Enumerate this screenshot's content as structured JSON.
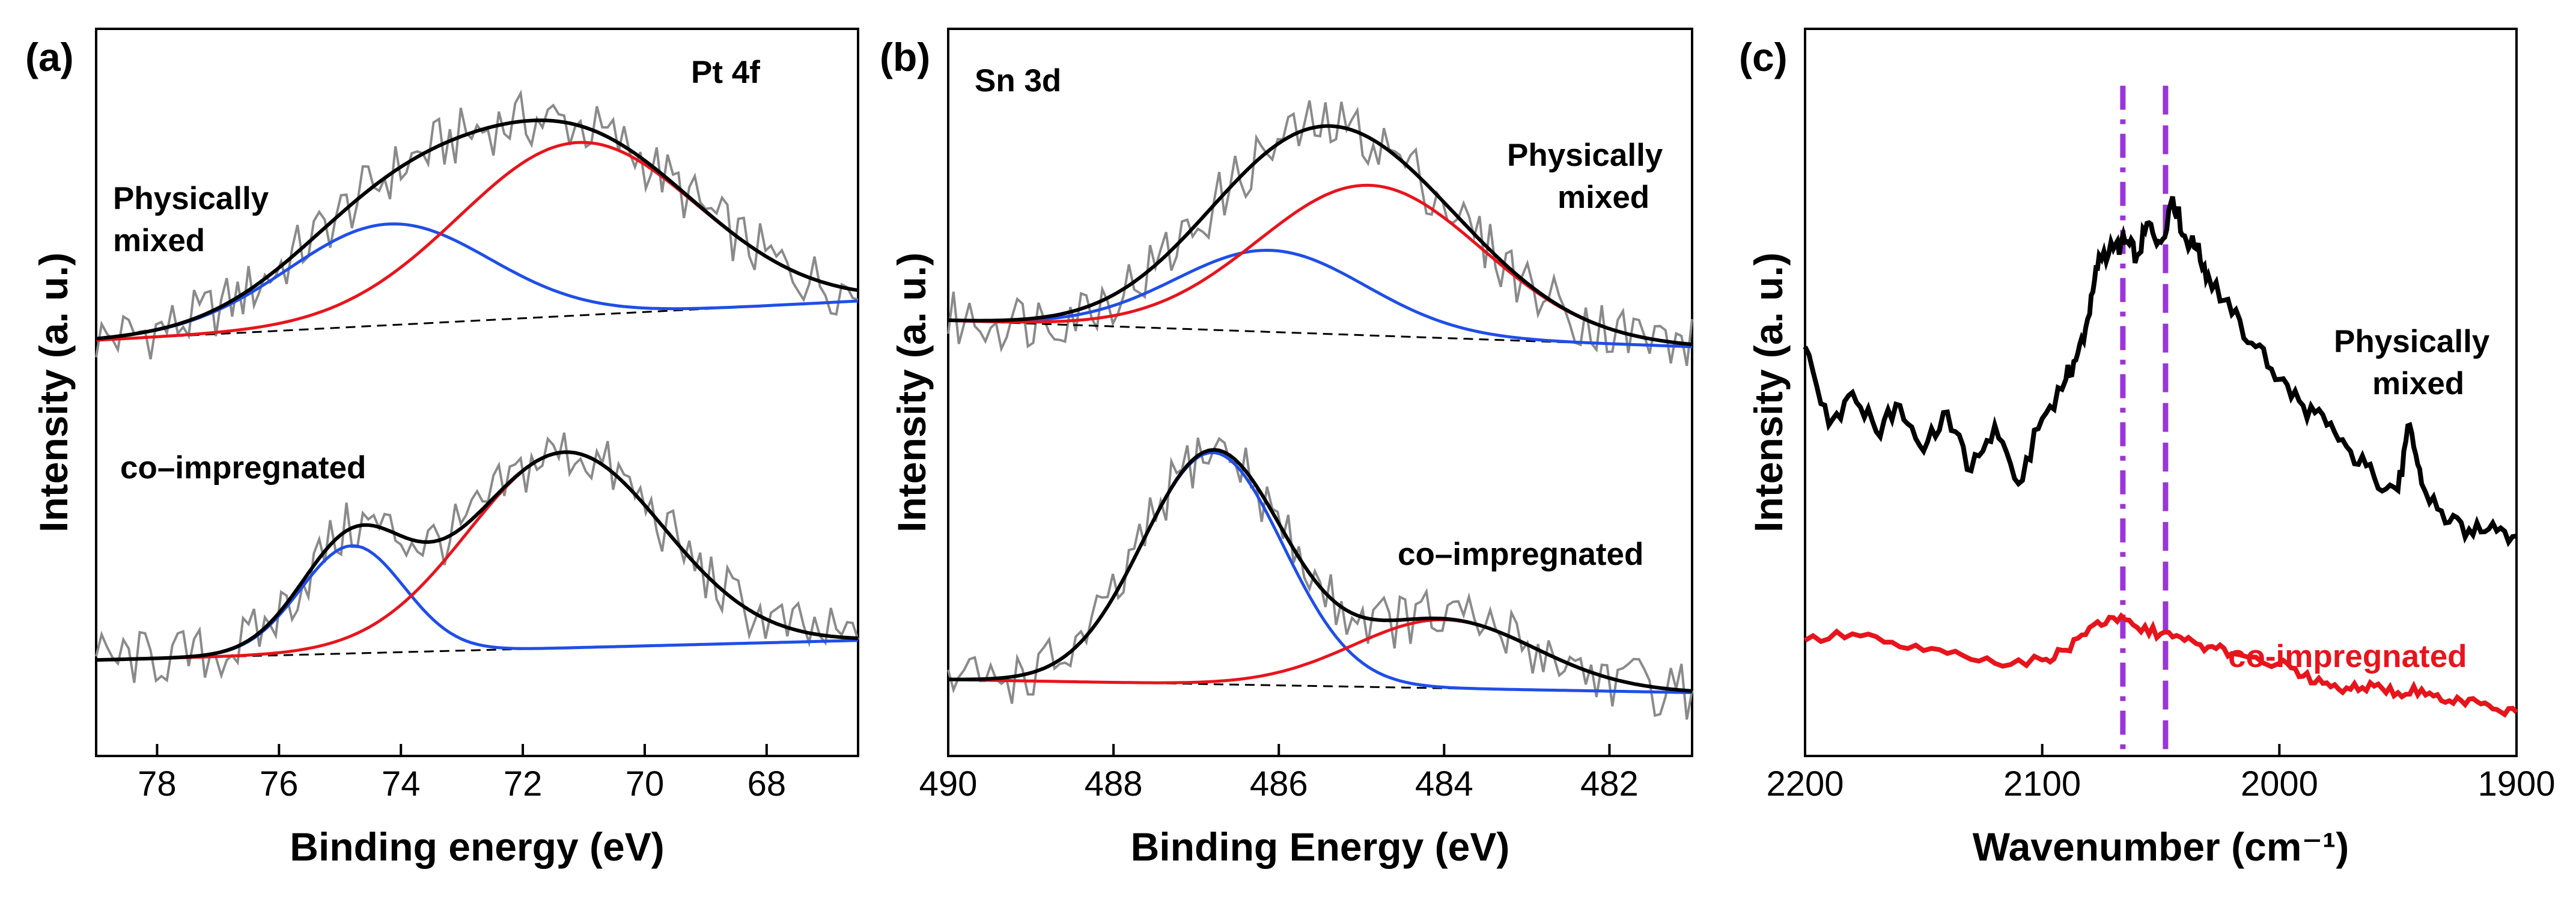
{
  "colors": {
    "raw": "#8a8a8a",
    "envelope": "#000000",
    "peak_red": "#e8141c",
    "peak_blue": "#1f4ee8",
    "baseline": "#000000",
    "ir_black": "#000000",
    "ir_red": "#e8141c",
    "marker": "#9a35d8"
  },
  "chart_data": [
    {
      "type": "line",
      "panel_label": "(a)",
      "title": "Pt 4f",
      "xlabel": "Binding energy (eV)",
      "ylabel": "Intensity (a. u.)",
      "xlim": [
        79,
        66.5
      ],
      "ylim": [
        0,
        100
      ],
      "x_reversed": true,
      "xticks": [
        78,
        76,
        74,
        72,
        70,
        68
      ],
      "xtick_labels": [
        "78",
        "76",
        "74",
        "72",
        "70",
        "68"
      ],
      "annotations": [
        {
          "text": "Pt 4f"
        },
        {
          "text": "Physically",
          "group": "top"
        },
        {
          "text": "mixed",
          "group": "top"
        },
        {
          "text": "co–impregnated",
          "group": "bottom"
        }
      ],
      "series": [
        {
          "name": "Physically mixed – baseline",
          "role": "baseline",
          "offset": 58,
          "base_start": 0,
          "base_end": 6
        },
        {
          "name": "Physically mixed – peak 1",
          "role": "peak",
          "color": "blue",
          "offset": 58,
          "center": 74.2,
          "sigma": 1.65,
          "amplitude": 15.5
        },
        {
          "name": "Physically mixed – peak 2",
          "role": "peak",
          "color": "red",
          "offset": 58,
          "center": 71.1,
          "sigma": 1.95,
          "amplitude": 26.5
        },
        {
          "name": "co–impregnated – baseline",
          "role": "baseline",
          "offset": 9,
          "base_start": 0,
          "base_end": 3
        },
        {
          "name": "co–impregnated – peak 1",
          "role": "peak",
          "color": "blue",
          "offset": 9,
          "center": 74.8,
          "sigma": 0.85,
          "amplitude": 16.5
        },
        {
          "name": "co–impregnated – peak 2",
          "role": "peak",
          "color": "red",
          "offset": 9,
          "center": 71.3,
          "sigma": 1.6,
          "amplitude": 30
        }
      ]
    },
    {
      "type": "line",
      "panel_label": "(b)",
      "title": "Sn 3d",
      "xlabel": "Binding Energy (eV)",
      "ylabel": "Intensity (a. u.)",
      "xlim": [
        490,
        481
      ],
      "ylim": [
        0,
        100
      ],
      "x_reversed": true,
      "xticks": [
        490,
        488,
        486,
        484,
        482
      ],
      "xtick_labels": [
        "490",
        "488",
        "486",
        "484",
        "482"
      ],
      "annotations": [
        {
          "text": "Sn 3d"
        },
        {
          "text": "Physically",
          "group": "top"
        },
        {
          "text": "mixed",
          "group": "top"
        },
        {
          "text": "co–impregnated",
          "group": "bottom"
        }
      ],
      "series": [
        {
          "name": "Physically mixed – baseline",
          "role": "baseline",
          "offset": 59,
          "base_start": 2,
          "base_end": -2
        },
        {
          "name": "Physically mixed – peak 1",
          "role": "peak",
          "color": "blue",
          "offset": 59,
          "center": 486.1,
          "sigma": 1.15,
          "amplitude": 12.5
        },
        {
          "name": "Physically mixed – peak 2",
          "role": "peak",
          "color": "red",
          "offset": 59,
          "center": 484.9,
          "sigma": 1.35,
          "amplitude": 23
        },
        {
          "name": "co–impregnated – baseline",
          "role": "baseline",
          "offset": 6,
          "base_start": 0,
          "base_end": -2
        },
        {
          "name": "co–impregnated – peak 1",
          "role": "peak",
          "color": "blue",
          "offset": 6,
          "center": 486.8,
          "sigma": 0.85,
          "amplitude": 35.5
        },
        {
          "name": "co–impregnated – peak 2",
          "role": "peak",
          "color": "red",
          "offset": 6,
          "center": 484,
          "sigma": 1.1,
          "amplitude": 10.5
        }
      ]
    },
    {
      "type": "line",
      "panel_label": "(c)",
      "title": "",
      "xlabel": "Wavenumber (cm⁻¹)",
      "ylabel": "Intensity (a. u.)",
      "xlim": [
        2200,
        1900
      ],
      "ylim": [
        0,
        100
      ],
      "x_reversed": true,
      "xticks": [
        2200,
        2100,
        2000,
        1900
      ],
      "xtick_labels": [
        "2200",
        "2100",
        "2000",
        "1900"
      ],
      "annotations": [
        {
          "text": "Physically",
          "group": "top"
        },
        {
          "text": "mixed",
          "group": "top"
        },
        {
          "text": "co-impregnated",
          "group": "bottom",
          "color": "red"
        }
      ],
      "markers": [
        {
          "x": 2066,
          "style": "dash-dot"
        },
        {
          "x": 2048,
          "style": "dashed"
        }
      ],
      "series": [
        {
          "name": "Physically mixed",
          "color": "black",
          "x": [
            2200,
            2190,
            2180,
            2170,
            2160,
            2150,
            2140,
            2130,
            2120,
            2110,
            2100,
            2090,
            2085,
            2080,
            2076,
            2070,
            2065,
            2060,
            2055,
            2050,
            2045,
            2040,
            2035,
            2030,
            2020,
            2010,
            2000,
            1990,
            1980,
            1970,
            1960,
            1950,
            1945,
            1940,
            1930,
            1920,
            1910,
            1900
          ],
          "y": [
            57,
            45,
            50,
            44,
            48,
            41,
            47,
            38,
            45,
            36,
            46,
            52,
            56,
            62,
            71,
            72,
            73,
            71,
            76,
            73,
            80,
            74,
            72,
            68,
            62,
            57,
            52,
            48,
            45,
            41,
            37,
            35,
            45,
            36,
            30,
            29,
            30,
            28
          ]
        },
        {
          "name": "co-impregnated",
          "color": "red",
          "x": [
            2200,
            2180,
            2160,
            2140,
            2120,
            2100,
            2090,
            2080,
            2070,
            2060,
            2050,
            2040,
            2030,
            2020,
            2000,
            1990,
            1980,
            1970,
            1960,
            1950,
            1940,
            1930,
            1920,
            1910,
            1900
          ],
          "y": [
            12,
            13,
            11,
            10,
            8.5,
            9,
            10.5,
            14,
            15.5,
            14,
            13,
            12,
            11,
            10,
            8.5,
            6.5,
            5.5,
            4.5,
            5,
            4,
            4.5,
            2.5,
            3,
            1.5,
            1
          ]
        }
      ]
    }
  ]
}
